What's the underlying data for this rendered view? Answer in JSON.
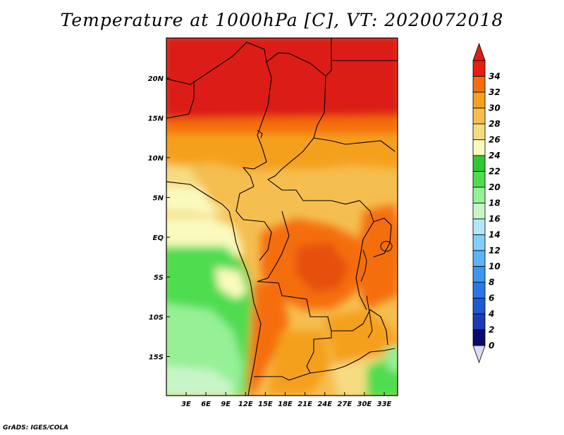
{
  "title": "Temperature at 1000hPa [C], VT: 2020072018",
  "credit": "GrADS: IGES/COLA",
  "map": {
    "lon_labels": [
      "3E",
      "6E",
      "9E",
      "12E",
      "15E",
      "18E",
      "21E",
      "24E",
      "27E",
      "30E",
      "33E"
    ],
    "lat_labels": [
      "20N",
      "15N",
      "10N",
      "5N",
      "EQ",
      "5S",
      "10S",
      "15S"
    ]
  },
  "colorbar": {
    "levels": [
      "0",
      "2",
      "4",
      "6",
      "8",
      "10",
      "12",
      "14",
      "16",
      "18",
      "20",
      "22",
      "24",
      "26",
      "28",
      "30",
      "32",
      "34"
    ],
    "colors": [
      "#0a0a6e",
      "#1a3cb4",
      "#1e5ad2",
      "#2878e6",
      "#3c96f0",
      "#5ab4f5",
      "#82cdfa",
      "#b4e6fa",
      "#c8f5c8",
      "#96f096",
      "#50dc50",
      "#32c832",
      "#fafabe",
      "#f5dc82",
      "#f5be50",
      "#f5a01e",
      "#f56e0a",
      "#e61e0a"
    ],
    "under_color": "#dcdcf5",
    "over_color": "#dc1e14"
  }
}
